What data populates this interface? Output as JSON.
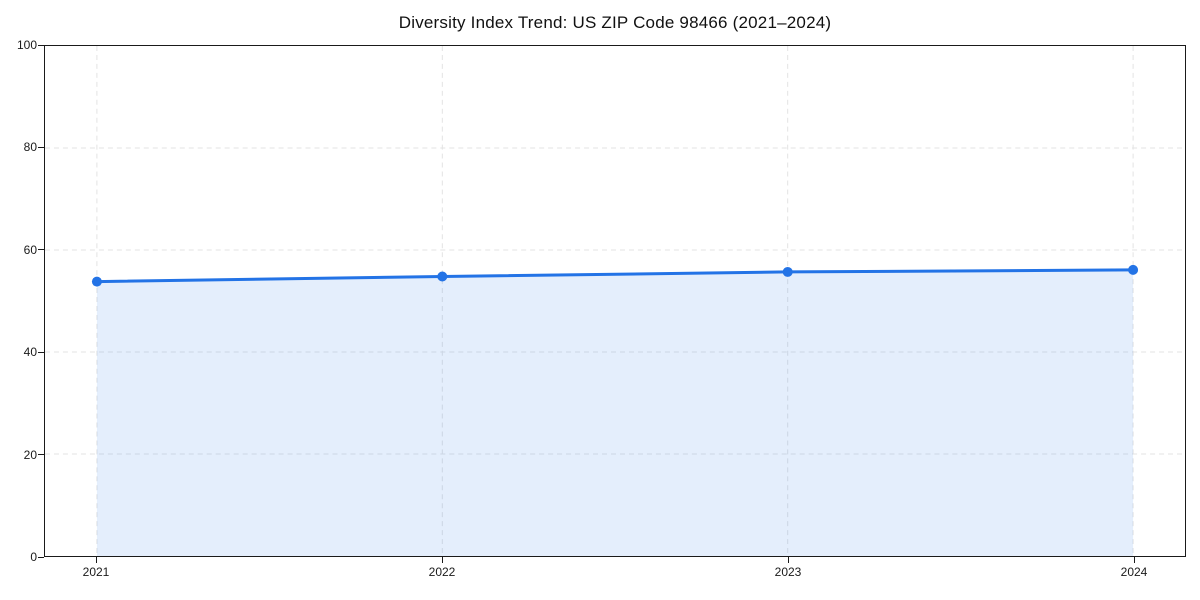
{
  "colors": {
    "line": "#2373e6",
    "marker": "#2373e6",
    "area_fill_base": "#2373e6",
    "area_opacity": 0.12,
    "grid": "#e3e3e3",
    "spine": "#1a1a1a",
    "text": "#111111"
  },
  "chart_data": {
    "type": "line",
    "title": "Diversity Index Trend: US ZIP Code 98466 (2021–2024)",
    "series_name": "Diversity Index",
    "x": [
      "2021",
      "2022",
      "2023",
      "2024"
    ],
    "values": [
      53.8,
      54.8,
      55.7,
      56.1
    ],
    "xlabel": "",
    "ylabel": "",
    "ylim": [
      0,
      100
    ],
    "yticks": [
      0,
      20,
      40,
      60,
      80,
      100
    ],
    "xticks": [
      "2021",
      "2022",
      "2023",
      "2024"
    ],
    "grid": true,
    "grid_style": "dashed",
    "legend": false,
    "marker": "circle",
    "area_fill": true,
    "line_width": 3,
    "marker_radius": 5
  }
}
